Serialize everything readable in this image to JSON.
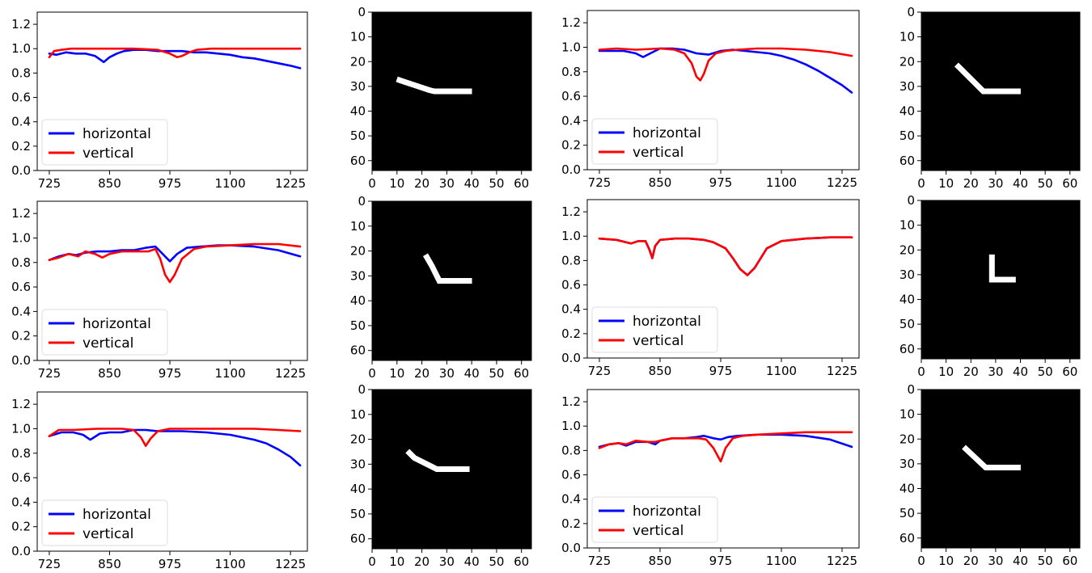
{
  "legend": {
    "horizontal": "horizontal",
    "vertical": "vertical"
  },
  "colors": {
    "horizontal": "#0000ff",
    "vertical": "#ff0000",
    "mask_background": "#000000",
    "mask_foreground": "#ffffff"
  },
  "chart_data": [
    {
      "type": "line",
      "panel": "row1-col1",
      "xlim": [
        700,
        1260
      ],
      "ylim": [
        0.0,
        1.3
      ],
      "xticks": [
        725,
        850,
        975,
        1100,
        1225
      ],
      "yticks": [
        0.0,
        0.2,
        0.4,
        0.6,
        0.8,
        1.0,
        1.2
      ],
      "legend_position": "lower left",
      "series": [
        {
          "name": "horizontal",
          "x": [
            725,
            740,
            760,
            780,
            800,
            820,
            838,
            850,
            865,
            880,
            900,
            925,
            950,
            975,
            1000,
            1025,
            1050,
            1075,
            1100,
            1125,
            1150,
            1175,
            1200,
            1225,
            1245
          ],
          "y": [
            0.96,
            0.95,
            0.97,
            0.96,
            0.96,
            0.94,
            0.89,
            0.93,
            0.96,
            0.98,
            0.99,
            0.99,
            0.98,
            0.98,
            0.98,
            0.97,
            0.97,
            0.96,
            0.95,
            0.93,
            0.92,
            0.9,
            0.88,
            0.86,
            0.84
          ]
        },
        {
          "name": "vertical",
          "x": [
            725,
            735,
            750,
            770,
            800,
            850,
            900,
            950,
            975,
            990,
            1000,
            1015,
            1030,
            1060,
            1100,
            1150,
            1200,
            1245
          ],
          "y": [
            0.93,
            0.98,
            0.99,
            1.0,
            1.0,
            1.0,
            1.0,
            0.99,
            0.96,
            0.93,
            0.94,
            0.97,
            0.99,
            1.0,
            1.0,
            1.0,
            1.0,
            1.0
          ]
        }
      ]
    },
    {
      "type": "line",
      "panel": "row1-col2",
      "xlim": [
        700,
        1260
      ],
      "ylim": [
        0.0,
        1.3
      ],
      "xticks": [
        725,
        850,
        975,
        1100,
        1225
      ],
      "yticks": [
        0.0,
        0.2,
        0.4,
        0.6,
        0.8,
        1.0,
        1.2
      ],
      "legend_position": "lower left",
      "series": [
        {
          "name": "horizontal",
          "x": [
            725,
            750,
            775,
            800,
            815,
            830,
            850,
            875,
            900,
            925,
            950,
            975,
            1000,
            1025,
            1050,
            1075,
            1100,
            1125,
            1150,
            1175,
            1200,
            1225,
            1245
          ],
          "y": [
            0.97,
            0.97,
            0.97,
            0.95,
            0.92,
            0.95,
            0.99,
            0.99,
            0.98,
            0.95,
            0.94,
            0.97,
            0.98,
            0.97,
            0.96,
            0.95,
            0.93,
            0.9,
            0.86,
            0.81,
            0.75,
            0.69,
            0.63
          ]
        },
        {
          "name": "vertical",
          "x": [
            725,
            760,
            800,
            850,
            880,
            900,
            915,
            925,
            933,
            940,
            950,
            965,
            985,
            1010,
            1050,
            1100,
            1150,
            1200,
            1245
          ],
          "y": [
            0.98,
            0.99,
            0.98,
            0.99,
            0.98,
            0.95,
            0.87,
            0.76,
            0.73,
            0.78,
            0.89,
            0.95,
            0.97,
            0.98,
            0.99,
            0.99,
            0.98,
            0.96,
            0.93
          ]
        }
      ]
    },
    {
      "type": "line",
      "panel": "row2-col1",
      "xlim": [
        700,
        1260
      ],
      "ylim": [
        0.0,
        1.3
      ],
      "xticks": [
        725,
        850,
        975,
        1100,
        1225
      ],
      "yticks": [
        0.0,
        0.2,
        0.4,
        0.6,
        0.8,
        1.0,
        1.2
      ],
      "legend_position": "lower left",
      "series": [
        {
          "name": "horizontal",
          "x": [
            725,
            745,
            765,
            780,
            800,
            825,
            850,
            875,
            900,
            925,
            945,
            960,
            975,
            990,
            1010,
            1040,
            1075,
            1100,
            1150,
            1200,
            1245
          ],
          "y": [
            0.82,
            0.85,
            0.87,
            0.86,
            0.88,
            0.89,
            0.89,
            0.9,
            0.9,
            0.92,
            0.93,
            0.87,
            0.81,
            0.87,
            0.92,
            0.93,
            0.94,
            0.94,
            0.93,
            0.9,
            0.85
          ]
        },
        {
          "name": "vertical",
          "x": [
            725,
            745,
            765,
            785,
            800,
            820,
            835,
            850,
            875,
            900,
            930,
            945,
            955,
            965,
            975,
            985,
            1000,
            1025,
            1050,
            1100,
            1150,
            1200,
            1245
          ],
          "y": [
            0.82,
            0.84,
            0.87,
            0.85,
            0.89,
            0.87,
            0.84,
            0.87,
            0.89,
            0.89,
            0.89,
            0.91,
            0.83,
            0.7,
            0.64,
            0.7,
            0.83,
            0.91,
            0.93,
            0.94,
            0.95,
            0.95,
            0.93
          ]
        }
      ]
    },
    {
      "type": "line",
      "panel": "row2-col2",
      "xlim": [
        700,
        1260
      ],
      "ylim": [
        0.0,
        1.3
      ],
      "xticks": [
        725,
        850,
        975,
        1100,
        1225
      ],
      "yticks": [
        0.0,
        0.2,
        0.4,
        0.6,
        0.8,
        1.0,
        1.2
      ],
      "legend_position": "lower left",
      "series": [
        {
          "name": "horizontal",
          "x": [
            725,
            760,
            790,
            805,
            820,
            828,
            834,
            840,
            850,
            880,
            910,
            940,
            960,
            985,
            1000,
            1015,
            1030,
            1045,
            1070,
            1100,
            1150,
            1200,
            1245
          ],
          "y": [
            0.98,
            0.97,
            0.94,
            0.96,
            0.96,
            0.89,
            0.82,
            0.92,
            0.97,
            0.98,
            0.98,
            0.97,
            0.95,
            0.9,
            0.82,
            0.73,
            0.68,
            0.74,
            0.9,
            0.96,
            0.98,
            0.99,
            0.99
          ]
        },
        {
          "name": "vertical",
          "x": [
            725,
            760,
            790,
            805,
            820,
            828,
            834,
            840,
            850,
            880,
            910,
            940,
            960,
            985,
            1000,
            1015,
            1030,
            1045,
            1070,
            1100,
            1150,
            1200,
            1245
          ],
          "y": [
            0.98,
            0.97,
            0.94,
            0.96,
            0.96,
            0.89,
            0.82,
            0.92,
            0.97,
            0.98,
            0.98,
            0.97,
            0.95,
            0.9,
            0.82,
            0.73,
            0.68,
            0.74,
            0.9,
            0.96,
            0.98,
            0.99,
            0.99
          ]
        }
      ]
    },
    {
      "type": "line",
      "panel": "row3-col1",
      "xlim": [
        700,
        1260
      ],
      "ylim": [
        0.0,
        1.3
      ],
      "xticks": [
        725,
        850,
        975,
        1100,
        1225
      ],
      "yticks": [
        0.0,
        0.2,
        0.4,
        0.6,
        0.8,
        1.0,
        1.2
      ],
      "legend_position": "lower left",
      "series": [
        {
          "name": "horizontal",
          "x": [
            725,
            750,
            775,
            795,
            810,
            830,
            850,
            875,
            900,
            925,
            950,
            975,
            1000,
            1050,
            1100,
            1150,
            1175,
            1200,
            1225,
            1245
          ],
          "y": [
            0.94,
            0.97,
            0.97,
            0.95,
            0.91,
            0.96,
            0.97,
            0.97,
            0.99,
            0.99,
            0.98,
            0.98,
            0.98,
            0.97,
            0.95,
            0.91,
            0.88,
            0.83,
            0.77,
            0.7
          ]
        },
        {
          "name": "vertical",
          "x": [
            725,
            745,
            775,
            825,
            875,
            900,
            915,
            925,
            935,
            950,
            975,
            1050,
            1100,
            1150,
            1200,
            1245
          ],
          "y": [
            0.94,
            0.99,
            0.99,
            1.0,
            1.0,
            0.99,
            0.93,
            0.86,
            0.92,
            0.98,
            1.0,
            1.0,
            1.0,
            1.0,
            0.99,
            0.98
          ]
        }
      ]
    },
    {
      "type": "line",
      "panel": "row3-col2",
      "xlim": [
        700,
        1260
      ],
      "ylim": [
        0.0,
        1.3
      ],
      "xticks": [
        725,
        850,
        975,
        1100,
        1225
      ],
      "yticks": [
        0.0,
        0.2,
        0.4,
        0.6,
        0.8,
        1.0,
        1.2
      ],
      "legend_position": "lower left",
      "series": [
        {
          "name": "horizontal",
          "x": [
            725,
            745,
            765,
            780,
            800,
            825,
            840,
            850,
            875,
            900,
            925,
            940,
            960,
            975,
            990,
            1010,
            1050,
            1100,
            1150,
            1200,
            1245
          ],
          "y": [
            0.83,
            0.85,
            0.86,
            0.84,
            0.87,
            0.87,
            0.85,
            0.88,
            0.9,
            0.9,
            0.91,
            0.92,
            0.9,
            0.89,
            0.91,
            0.92,
            0.93,
            0.93,
            0.92,
            0.89,
            0.83
          ]
        },
        {
          "name": "vertical",
          "x": [
            725,
            745,
            765,
            780,
            800,
            825,
            840,
            850,
            875,
            900,
            930,
            945,
            960,
            975,
            985,
            1000,
            1020,
            1050,
            1100,
            1150,
            1200,
            1245
          ],
          "y": [
            0.82,
            0.85,
            0.86,
            0.85,
            0.88,
            0.87,
            0.87,
            0.88,
            0.9,
            0.9,
            0.9,
            0.89,
            0.82,
            0.71,
            0.82,
            0.9,
            0.92,
            0.93,
            0.94,
            0.95,
            0.95,
            0.95
          ]
        }
      ]
    },
    {
      "type": "heatmap",
      "panel": "row1-col1-mask",
      "xlim": [
        0,
        64
      ],
      "ylim": [
        64,
        0
      ],
      "xticks": [
        0,
        10,
        20,
        30,
        40,
        50,
        60
      ],
      "yticks": [
        0,
        10,
        20,
        30,
        40,
        50,
        60
      ],
      "polyline": [
        [
          11,
          27.5
        ],
        [
          14,
          28.5
        ],
        [
          17,
          29.5
        ],
        [
          20,
          30.5
        ],
        [
          23,
          31.5
        ],
        [
          25,
          32
        ],
        [
          39,
          32
        ]
      ]
    },
    {
      "type": "heatmap",
      "panel": "row1-col2-mask",
      "xlim": [
        0,
        64
      ],
      "ylim": [
        64,
        0
      ],
      "xticks": [
        0,
        10,
        20,
        30,
        40,
        50,
        60
      ],
      "yticks": [
        0,
        10,
        20,
        30,
        40,
        50,
        60
      ],
      "polyline": [
        [
          15,
          22
        ],
        [
          25,
          32
        ],
        [
          39,
          32
        ]
      ]
    },
    {
      "type": "heatmap",
      "panel": "row2-col1-mask",
      "xlim": [
        0,
        64
      ],
      "ylim": [
        64,
        0
      ],
      "xticks": [
        0,
        10,
        20,
        30,
        40,
        50,
        60
      ],
      "yticks": [
        0,
        10,
        20,
        30,
        40,
        50,
        60
      ],
      "polyline": [
        [
          22,
          22.5
        ],
        [
          24,
          26
        ],
        [
          26,
          30
        ],
        [
          27,
          32
        ],
        [
          39,
          32
        ]
      ]
    },
    {
      "type": "heatmap",
      "panel": "row2-col2-mask",
      "xlim": [
        0,
        64
      ],
      "ylim": [
        64,
        0
      ],
      "xticks": [
        0,
        10,
        20,
        30,
        40,
        50,
        60
      ],
      "yticks": [
        0,
        10,
        20,
        30,
        40,
        50,
        60
      ],
      "polyline": [
        [
          28.5,
          23
        ],
        [
          28.5,
          32
        ],
        [
          37,
          32
        ]
      ]
    },
    {
      "type": "heatmap",
      "panel": "row3-col1-mask",
      "xlim": [
        0,
        64
      ],
      "ylim": [
        64,
        0
      ],
      "xticks": [
        0,
        10,
        20,
        30,
        40,
        50,
        60
      ],
      "yticks": [
        0,
        10,
        20,
        30,
        40,
        50,
        60
      ],
      "polyline": [
        [
          15,
          25.5
        ],
        [
          17,
          27.5
        ],
        [
          20,
          29
        ],
        [
          23,
          30.5
        ],
        [
          26,
          32
        ],
        [
          38,
          32
        ]
      ]
    },
    {
      "type": "heatmap",
      "panel": "row3-col2-mask",
      "xlim": [
        0,
        64
      ],
      "ylim": [
        64,
        0
      ],
      "xticks": [
        0,
        10,
        20,
        30,
        40,
        50,
        60
      ],
      "yticks": [
        0,
        10,
        20,
        30,
        40,
        50,
        60
      ],
      "polyline": [
        [
          18,
          24
        ],
        [
          26,
          31.5
        ],
        [
          39,
          31.5
        ]
      ]
    }
  ]
}
